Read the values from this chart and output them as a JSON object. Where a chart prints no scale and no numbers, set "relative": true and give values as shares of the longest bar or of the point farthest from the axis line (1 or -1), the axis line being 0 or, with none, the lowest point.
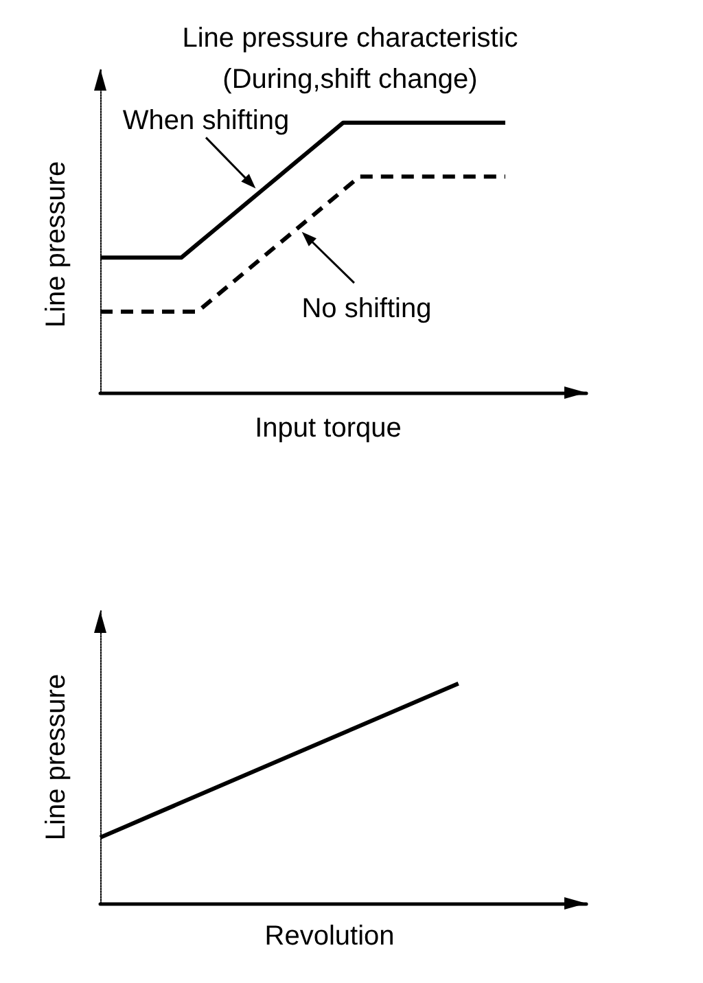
{
  "chart_data": [
    {
      "type": "line",
      "title": "Line pressure characteristic",
      "subtitle": "(During,shift change)",
      "xlabel": "Input torque",
      "ylabel": "Line pressure",
      "relative": true,
      "marker": "none",
      "legend": "top left",
      "categories": [
        null,
        null,
        null,
        null,
        null,
        null,
        null,
        null,
        null,
        null,
        null,
        null,
        null,
        null,
        null,
        null,
        null,
        null,
        null,
        null,
        null,
        null,
        null,
        null,
        null,
        null,
        null,
        null,
        null,
        null,
        null
      ],
      "series": [
        {
          "name": "When shifting",
          "color": "#000000",
          "line_style": "solid",
          "values": [
            0.5,
            0.5,
            0.5,
            0.5,
            0.5,
            0.5,
            0.55,
            0.6,
            0.65,
            0.7,
            0.75,
            0.8,
            0.85,
            0.9,
            0.95,
            1,
            1,
            1,
            1,
            1,
            1,
            1,
            1,
            1,
            1,
            1,
            null,
            null,
            null,
            null,
            null
          ]
        },
        {
          "name": "No shifting",
          "color": "#000000",
          "line_style": "dashed",
          "values": [
            0.3,
            0.3,
            0.3,
            0.3,
            0.3,
            0.3,
            0.3,
            0.35,
            0.4,
            0.45,
            0.5,
            0.55,
            0.6,
            0.65,
            0.7,
            0.75,
            0.8,
            0.8,
            0.8,
            0.8,
            0.8,
            0.8,
            0.8,
            0.8,
            0.8,
            0.8,
            null,
            null,
            null,
            null,
            null
          ]
        }
      ]
    },
    {
      "type": "line",
      "xlabel": "Revolution",
      "ylabel": "Line pressure",
      "relative": true,
      "marker": "none",
      "categories": [
        null,
        null,
        null,
        null,
        null,
        null,
        null,
        null,
        null,
        null,
        null,
        null,
        null,
        null,
        null,
        null,
        null,
        null,
        null,
        null
      ],
      "series": [
        {
          "color": "#000000",
          "line_style": "solid",
          "values": [
            0.3,
            0.35,
            0.4,
            0.45,
            0.5,
            0.55,
            0.6,
            0.65,
            0.7,
            0.75,
            0.8,
            0.85,
            0.9,
            0.95,
            1,
            null,
            null,
            null,
            null,
            null
          ]
        }
      ]
    }
  ]
}
